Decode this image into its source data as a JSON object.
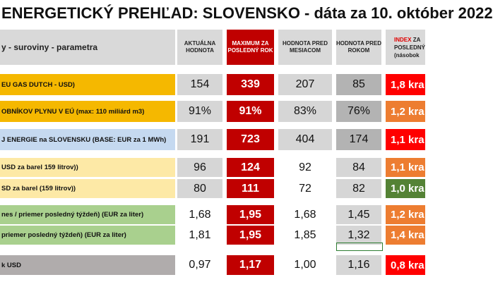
{
  "title": "ENERGETICKÝ PREHĽAD: SLOVENSKO - dáta za 10. október 2022",
  "header": {
    "label": "y - suroviny - parametra",
    "col_current": "AKTUÁLNA HODNOTA",
    "col_max": "MAXIMUM ZA POSLEDNÝ ROK",
    "col_month": "HODNOTA PRED MESIACOM",
    "col_year": "HODNOTA PRED ROKOM",
    "col_index_a": "INDEX",
    "col_index_b": "ZA",
    "col_index_c": "POSLEDNÝ",
    "col_index_d": "(násobok"
  },
  "rows": [
    {
      "label": "EU GAS DUTCH - USD)",
      "current": "154",
      "max": "339",
      "month": "207",
      "year": "85",
      "index": "1,8 kra"
    },
    {
      "label": "OBNÍKOV PLYNU V EÚ (max: 110 miliárd m3)",
      "current": "91%",
      "max": "91%",
      "month": "83%",
      "year": "76%",
      "index": "1,2 kra"
    },
    {
      "label": "J ENERGIE na SLOVENSKU (BASE: EUR za 1 MWh)",
      "current": "191",
      "max": "723",
      "month": "404",
      "year": "174",
      "index": "1,1 kra"
    },
    {
      "label": "USD za barel 159 litrov))",
      "current": "96",
      "max": "124",
      "month": "92",
      "year": "84",
      "index": "1,1 kra"
    },
    {
      "label": "SD za barel (159 litrov))",
      "current": "80",
      "max": "111",
      "month": "72",
      "year": "82",
      "index": "1,0 kra"
    },
    {
      "label": "nes / priemer posledný týždeň) (EUR za liter)",
      "current": "1,68",
      "max": "1,95",
      "month": "1,68",
      "year": "1,45",
      "index": "1,2 kra"
    },
    {
      "label": "priemer posledný týždeň) (EUR za liter)",
      "current": "1,81",
      "max": "1,95",
      "month": "1,85",
      "year": "1,32",
      "index": "1,4 kra"
    },
    {
      "label": "k USD",
      "current": "0,97",
      "max": "1,17",
      "month": "1,00",
      "year": "1,16",
      "index": "0,8 kra"
    }
  ],
  "colors": {
    "label_orange": "#f5b800",
    "label_blue": "#c5d9f0",
    "label_yellow": "#fde9a6",
    "label_green": "#a9d08e",
    "label_gray": "#b0acac",
    "cell_gray_light": "#d6d6d6",
    "cell_gray_mid": "#b3b3b3",
    "cell_red": "#c00000",
    "idx_red": "#ff0000",
    "idx_orange": "#ed7d31",
    "idx_green": "#548235",
    "hdr_max_red": "#c00000",
    "hdr_gray": "#d9d9d9"
  }
}
